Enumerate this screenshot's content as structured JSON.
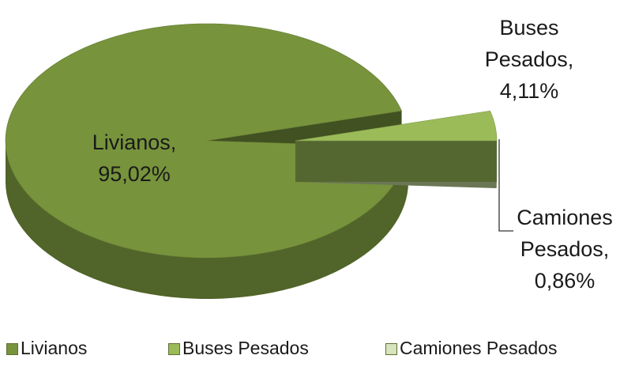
{
  "chart_data": {
    "type": "pie3d",
    "categories": [
      "Livianos",
      "Buses Pesados",
      "Camiones Pesados"
    ],
    "values": [
      95.02,
      4.11,
      0.86
    ],
    "value_labels": [
      "95,02%",
      "4,11%",
      "0,86%"
    ],
    "label_separator": ",",
    "colors": [
      "#77933c",
      "#9bbb59",
      "#c3d69b"
    ],
    "legend": "bottom"
  }
}
